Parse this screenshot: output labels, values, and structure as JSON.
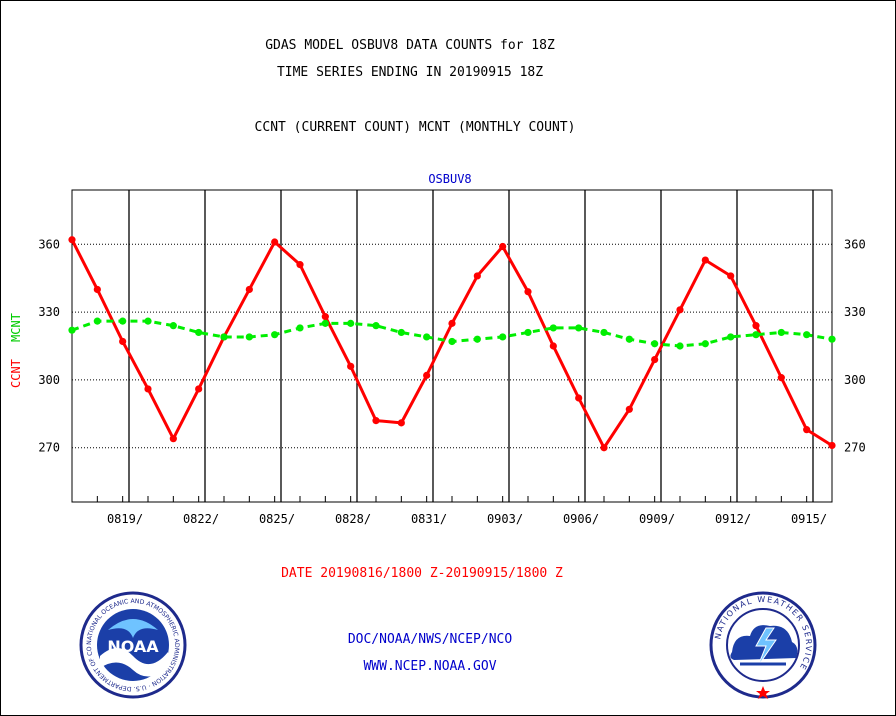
{
  "header": {
    "title_line1": "GDAS MODEL OSBUV8 DATA COUNTS for 18Z",
    "title_line2": "TIME SERIES ENDING IN 20190915 18Z",
    "legend_line": "CCNT (CURRENT COUNT) MCNT (MONTHLY COUNT)"
  },
  "footer": {
    "date_range": "DATE 20190816/1800 Z-20190915/1800 Z",
    "org_path": "DOC/NOAA/NWS/NCEP/NCO",
    "website": "WWW.NCEP.NOAA.GOV"
  },
  "logos": {
    "left_label": "NOAA",
    "left_ring_text": "NATIONAL OCEANIC AND ATMOSPHERIC ADMINISTRATION · U.S. DEPARTMENT OF COMMERCE",
    "right_ring_text": "NATIONAL WEATHER SERVICE"
  },
  "colors": {
    "ccnt": "#ff0000",
    "mcnt": "#00ee00",
    "subtitle": "#0000cc",
    "date_range": "#ff0000",
    "links": "#0000cc"
  },
  "chart_data": {
    "type": "line",
    "subtitle": "OSBUV8",
    "ylabel_ccnt": "CCNT",
    "ylabel_mcnt": "MCNT",
    "ylim": [
      246,
      384
    ],
    "yticks": [
      270,
      300,
      330,
      360
    ],
    "grid": "horizontal dotted",
    "xlim": [
      0,
      30
    ],
    "x_day_lines": [
      2.25,
      5.25,
      8.25,
      11.25,
      14.25,
      17.25,
      20.25,
      23.25,
      26.25,
      29.25
    ],
    "xtick_labels": [
      {
        "x": 2.25,
        "label": "0819/"
      },
      {
        "x": 5.25,
        "label": "0822/"
      },
      {
        "x": 8.25,
        "label": "0825/"
      },
      {
        "x": 11.25,
        "label": "0828/"
      },
      {
        "x": 14.25,
        "label": "0831/"
      },
      {
        "x": 17.25,
        "label": "0903/"
      },
      {
        "x": 20.25,
        "label": "0906/"
      },
      {
        "x": 23.25,
        "label": "0909/"
      },
      {
        "x": 26.25,
        "label": "0912/"
      },
      {
        "x": 29.25,
        "label": "0915/"
      }
    ],
    "series": [
      {
        "name": "CCNT",
        "x": [
          0,
          1,
          2,
          3,
          4,
          5,
          6,
          7,
          8,
          9,
          10,
          11,
          12,
          13,
          14,
          15,
          16,
          17,
          18,
          19,
          20,
          21,
          22,
          23,
          24,
          25,
          26,
          27,
          28,
          29,
          30
        ],
        "values": [
          362,
          340,
          317,
          296,
          274,
          296,
          319,
          340,
          361,
          351,
          328,
          306,
          282,
          281,
          302,
          325,
          346,
          359,
          339,
          315,
          292,
          270,
          287,
          309,
          331,
          353,
          346,
          324,
          301,
          278,
          271
        ]
      },
      {
        "name": "MCNT",
        "x": [
          0,
          1,
          2,
          3,
          4,
          5,
          6,
          7,
          8,
          9,
          10,
          11,
          12,
          13,
          14,
          15,
          16,
          17,
          18,
          19,
          20,
          21,
          22,
          23,
          24,
          25,
          26,
          27,
          28,
          29,
          30
        ],
        "values": [
          322,
          326,
          326,
          326,
          324,
          321,
          319,
          319,
          320,
          323,
          325,
          325,
          324,
          321,
          319,
          317,
          318,
          319,
          321,
          323,
          323,
          321,
          318,
          316,
          315,
          316,
          319,
          320,
          321,
          320,
          318
        ]
      }
    ]
  }
}
